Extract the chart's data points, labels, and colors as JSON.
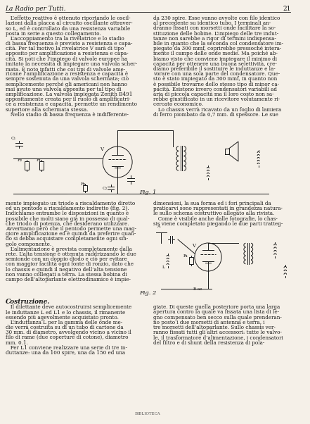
{
  "page_title": "La Radio per Tutti.",
  "page_number": "21",
  "background_color": "#f5f0e8",
  "text_color": "#1a1a1a",
  "col1_text": [
    "   L’effetto reattivo è ottenuto riportando le oscil-",
    "lazioni dalla placca al circuito oscillante attraver-",
    "so L, ed è controllato da una resistenza variabile",
    "posta in serie a questo collegamento.",
    "   L’accoppiamento tra la rivelatrice e lo stadio",
    "di bassa frequenza è previsto a resistenza e capa-",
    "cità. Per tal motivo la rivelatrice V sarà di tipo",
    "apposito per amplificazione a resistenza e capa-",
    "cità. Si noti che l’impiego di valvole europee ha",
    "imitato la necessità di impiegare una valvola scher-",
    "mata. È noto infatti che coi tipi di valvole ame-",
    "ricane l’amplificazione a resistenza e capacità è",
    "sempre sostenuta da una valvola schermata; ciò",
    "semplicemente perché gli americani non hanno",
    "mai avuto una valvola apposita per tal tipo di",
    "amplificazione. La valvola impiegata Zenith B491",
    "appositamente creata per il ruolo di amplificatri-",
    "ce a resistenza e capacità, permette un rendimento",
    "superiore alla schermata stessa.",
    "   Nello stadio di bassa frequenza è indifferente-"
  ],
  "col2_text": [
    "da 230 spire. Esse vanno avvolte con filo identico",
    "al precedente su identico tubo. I terminali an-",
    "dranno fissati con morsetti onde facilitare la so-",
    "stituzione delle bobine. L’impiego delle tre indut-",
    "tanze non sarebbe a rigor di termini indispensa-",
    "bile in quanto che la seconda col condensatore im-",
    "piegato da 300 mmf, coprirebbe pressoché intera-",
    "mente il campo delle onde medie. Ma poiché ab-",
    "biamo visto che conviene impiegare il minimo di",
    "capacità per ottenere una buona selettività, cre-",
    "diamo preferibile il sostituire le induttanze e la-",
    "vorare con una sola parte del condensatore. Que-",
    "sto è stato impiegato da 300 mmf, in quanto non",
    "è possibile trovarne dello stesso tipo di minor ca-",
    "pacità. Esistono invero condensatori variabili ad",
    "aria di piccola capacità ma il loro costo non sa-",
    "rebbe giustificato in un ricevitore volutamente ri-",
    "cercato economico.",
    "   Lo chassis verrà ricavato da un foglio di lamiera",
    "di ferro piombato da 0,7 mm. di spessore. Le sue"
  ],
  "col1_text2": [
    "mente impiegato un triodo a riscaldamento diretto",
    "ed un pentodo a riscaldamento indiretto (fig. 2).",
    "Indichiamo entrambe le disposizioni in quanto è",
    "possibile che molti siano già in possesso di qual-",
    "che triodo di potenza, che desiderano utilizzare.",
    "Avvertiamo però che il pentodo permette una mag-",
    "giore amplificazione ed è quindi da preferire quan-",
    "do si debba acquistare completamente ogni sin-",
    "golo componente.",
    "   L’alimentazione è prevista completamente dalla",
    "rete. L’alta tensione è ottenuta raddrizzando le due",
    "semionde con un doppio diodo e ciò per evitare",
    "con maggior facilità ogni fonte di ronzio, dato che",
    "lo chassis e quindi il negativo dell’alta tensione",
    "non vanno collegati a terra. La stessa bobina di",
    "campo dell’altoparlante elettrodinamico è impie-"
  ],
  "col2_text2": [
    "dimensioni, la sua forma ed i fori principali da",
    "praticarvi sono rappresentati in grandezza natura-",
    "le sullo schema costruttivo allegato alla rivista.",
    "   Come è visibile anche dalle fotografie, lo chas-",
    "sis viene completato piegando le due parti tratteg-"
  ],
  "costruzione_title": "Costruzione.",
  "costruzione_col1": [
    "   Il dilettante deve autocostruirsi semplicemente",
    "le induttanze L ed L1 e lo chassis, il rimanente",
    "essendo più agevolmente acquistato pronto.",
    "   L’induttanza L per la gamma delle onde me-",
    "die verrà costruita su di un tubo di cartone da",
    "30 mm. di diametro, avvolgendo vicino a vicino il",
    "filo di rame (due coperture di cotone), diametro",
    "mm. 0.1.",
    "   Per L1 conviene realizzare una serie di tre in-",
    "duttanze: una da 100 spire, una da 150 ed una"
  ],
  "costruzione_col2": [
    "giate. Di queste quella posteriore porta una larga",
    "apertura contro la quale va fissata una lista di le-",
    "gno compensato ben secco sulla quale prenderan-",
    "no posto i due morsetti di antenna e terra, i",
    "tre morsetti dell’altoparlante. Sullo chassis ver-",
    "ranno fissati tutti gli altri accessori: tutte le valvo-",
    "le, il trasformatore d’alimentazione, i condensatori",
    "del filtro e di shunt della resistenza di pola-"
  ],
  "fig1_caption": "Fig. 1",
  "fig2_caption": "Fig. 2"
}
